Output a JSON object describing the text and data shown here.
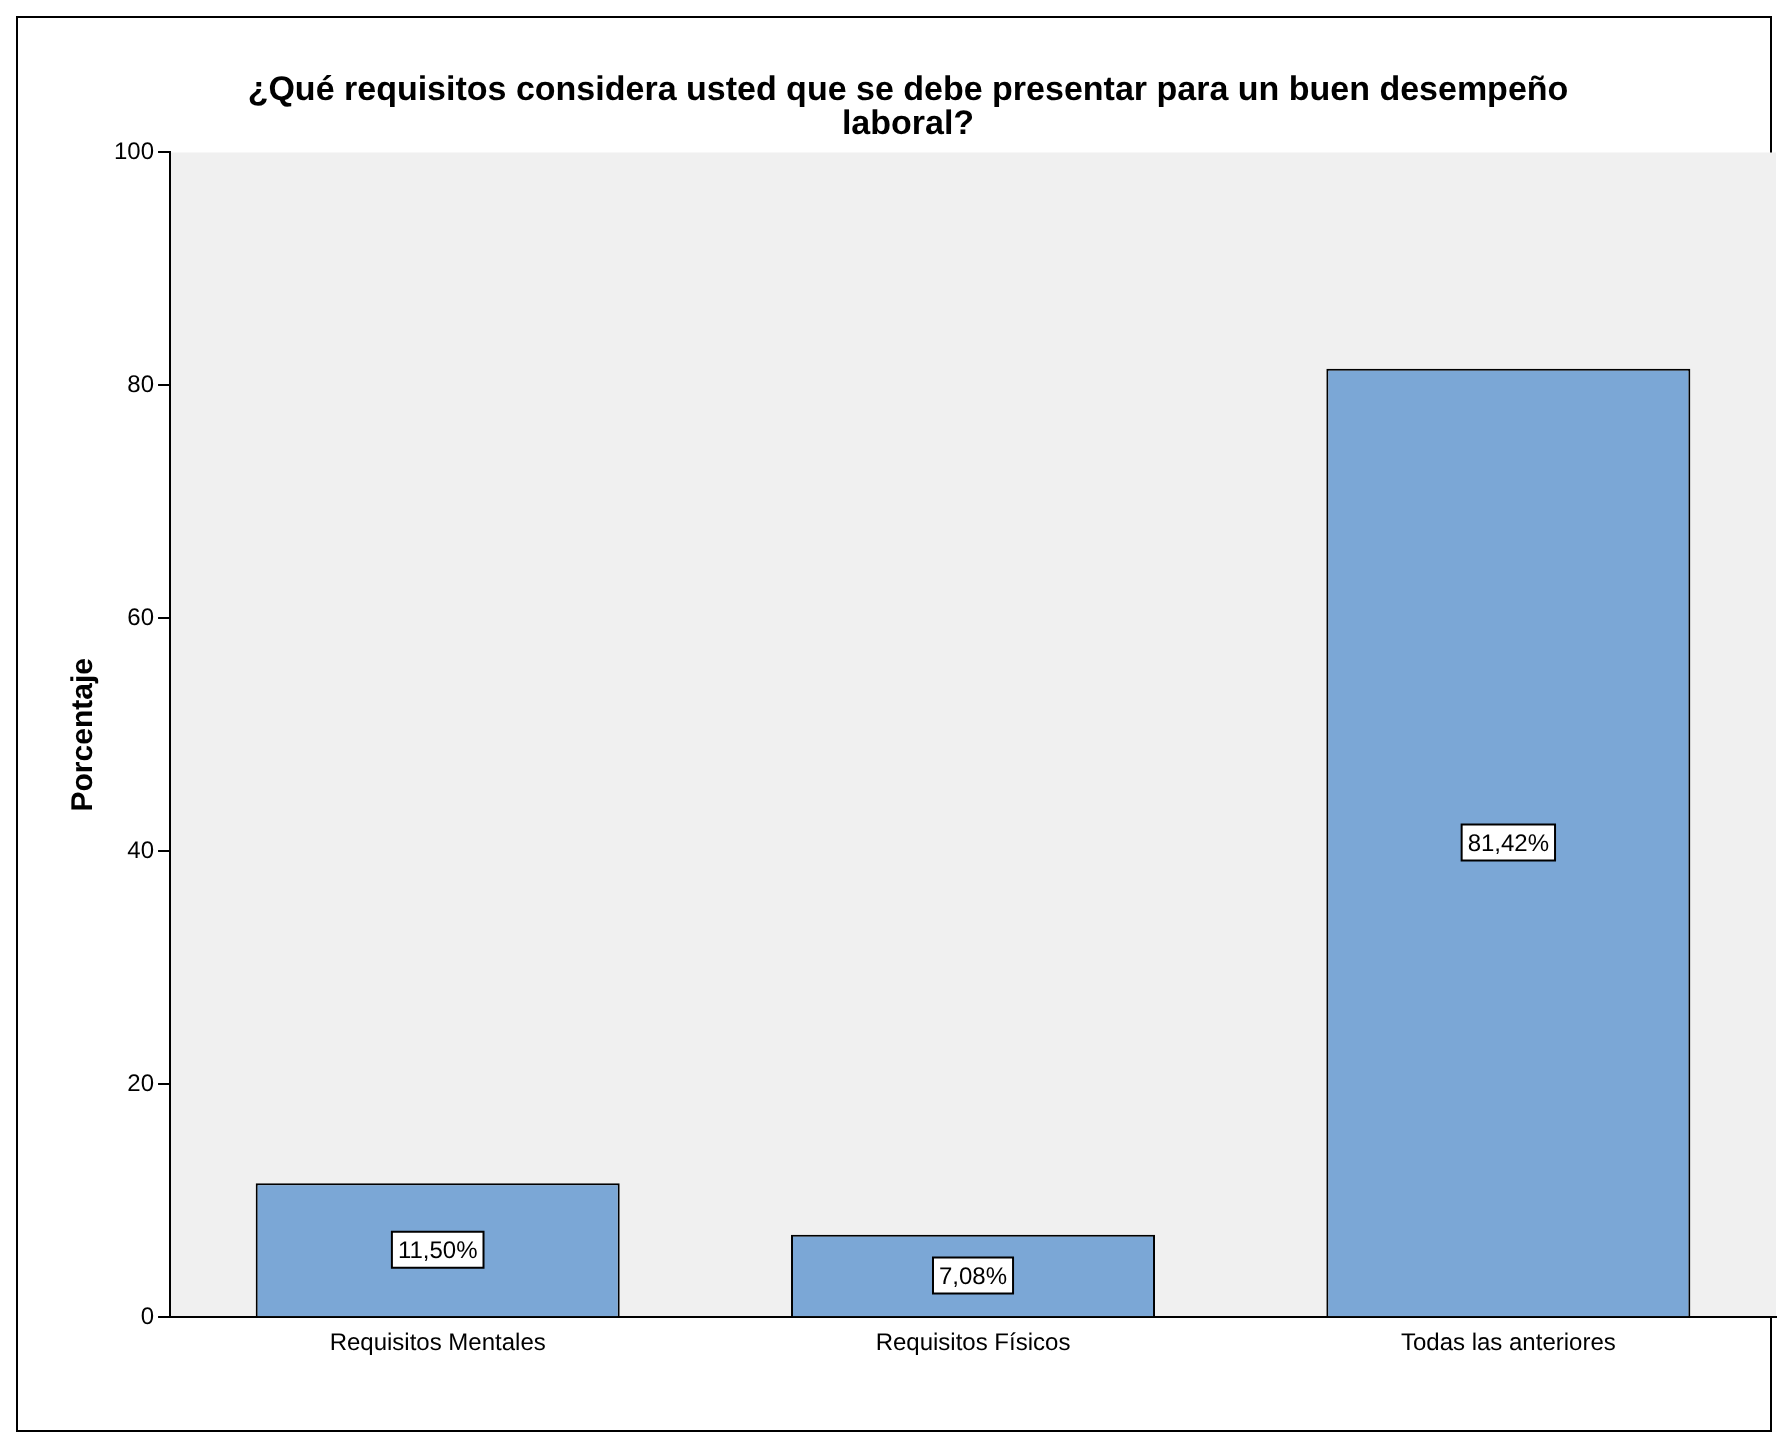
{
  "chart_data": {
    "type": "bar",
    "title": "¿Qué requisitos considera usted que se debe presentar para un buen desempeño laboral?",
    "ylabel": "Porcentaje",
    "categories": [
      "Requisitos Mentales",
      "Requisitos Físicos",
      "Todas las anteriores"
    ],
    "values": [
      11.5,
      7.08,
      81.42
    ],
    "color": "#7ba7d6",
    "value_labels": [
      "11,50%",
      "7,08%",
      "81,42%"
    ],
    "ylim": [
      0,
      100
    ],
    "yticks": [
      0,
      20,
      40,
      60,
      80,
      100
    ],
    "grid": false,
    "legend": false
  }
}
